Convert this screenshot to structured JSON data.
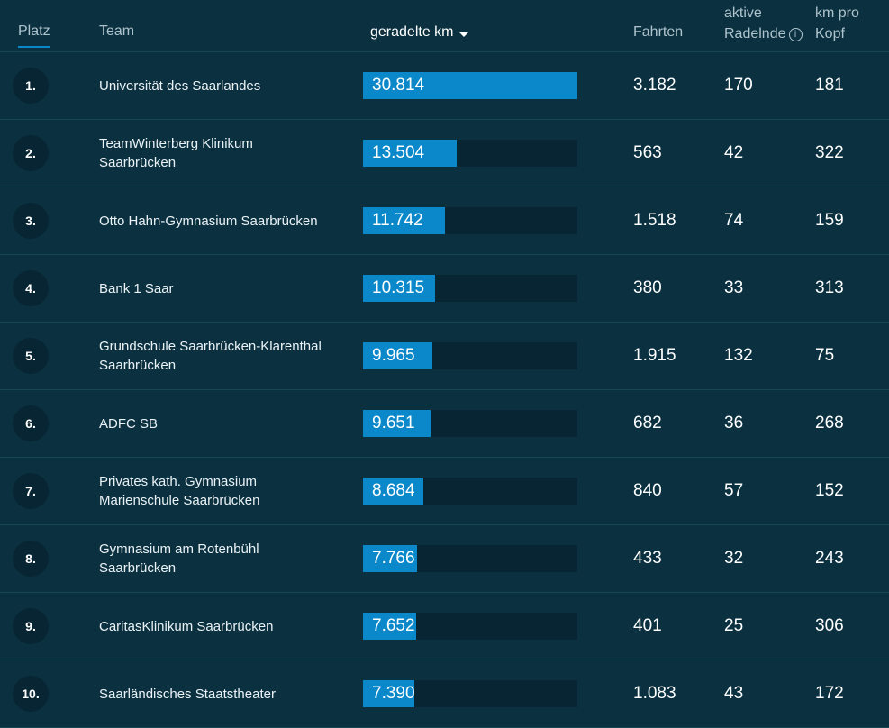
{
  "headers": {
    "platz": "Platz",
    "team": "Team",
    "km": "geradelte km",
    "fahrten": "Fahrten",
    "aktive_line1": "aktive",
    "aktive_line2": "Radelnde",
    "kopf_line1": "km pro",
    "kopf_line2": "Kopf",
    "info_icon": "i"
  },
  "rows": [
    {
      "rank": "1.",
      "team": [
        "Universität des Saarlandes"
      ],
      "km": "30.814",
      "km_value": 30814,
      "fahrten": "3.182",
      "aktive": "170",
      "kopf": "181"
    },
    {
      "rank": "2.",
      "team": [
        "TeamWinterberg Klinikum",
        "Saarbrücken"
      ],
      "km": "13.504",
      "km_value": 13504,
      "fahrten": "563",
      "aktive": "42",
      "kopf": "322"
    },
    {
      "rank": "3.",
      "team": [
        "Otto Hahn-Gymnasium Saarbrücken"
      ],
      "km": "11.742",
      "km_value": 11742,
      "fahrten": "1.518",
      "aktive": "74",
      "kopf": "159"
    },
    {
      "rank": "4.",
      "team": [
        "Bank 1 Saar"
      ],
      "km": "10.315",
      "km_value": 10315,
      "fahrten": "380",
      "aktive": "33",
      "kopf": "313"
    },
    {
      "rank": "5.",
      "team": [
        "Grundschule Saarbrücken-Klarenthal",
        "Saarbrücken"
      ],
      "km": "9.965",
      "km_value": 9965,
      "fahrten": "1.915",
      "aktive": "132",
      "kopf": "75"
    },
    {
      "rank": "6.",
      "team": [
        "ADFC SB"
      ],
      "km": "9.651",
      "km_value": 9651,
      "fahrten": "682",
      "aktive": "36",
      "kopf": "268"
    },
    {
      "rank": "7.",
      "team": [
        "Privates kath. Gymnasium",
        "Marienschule Saarbrücken"
      ],
      "km": "8.684",
      "km_value": 8684,
      "fahrten": "840",
      "aktive": "57",
      "kopf": "152"
    },
    {
      "rank": "8.",
      "team": [
        "Gymnasium am Rotenbühl",
        "Saarbrücken"
      ],
      "km": "7.766",
      "km_value": 7766,
      "fahrten": "433",
      "aktive": "32",
      "kopf": "243"
    },
    {
      "rank": "9.",
      "team": [
        "CaritasKlinikum Saarbrücken"
      ],
      "km": "7.652",
      "km_value": 7652,
      "fahrten": "401",
      "aktive": "25",
      "kopf": "306"
    },
    {
      "rank": "10.",
      "team": [
        "Saarländisches Staatstheater"
      ],
      "km": "7.390",
      "km_value": 7390,
      "fahrten": "1.083",
      "aktive": "43",
      "kopf": "172"
    }
  ],
  "colors": {
    "background": "#0b3141",
    "bar_fill": "#0a88c9",
    "bar_track": "#072532",
    "rank_circle": "#072532"
  }
}
